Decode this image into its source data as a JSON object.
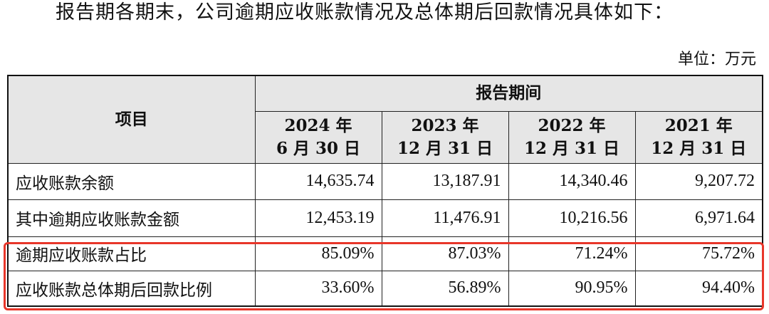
{
  "intro_text": "报告期各期末，公司逾期应收账款情况及总体期后回款情况具体如下：",
  "unit_text": "单位：万元",
  "table": {
    "item_header": "项目",
    "period_header": "报告期间",
    "periods": [
      {
        "year": "2024 年",
        "date": "6 月 30 日"
      },
      {
        "year": "2023 年",
        "date": "12 月 31 日"
      },
      {
        "year": "2022 年",
        "date": "12 月 31 日"
      },
      {
        "year": "2021 年",
        "date": "12 月 31 日"
      }
    ],
    "rows": [
      {
        "label": "应收账款余额",
        "values": [
          "14,635.74",
          "13,187.91",
          "14,340.46",
          "9,207.72"
        ]
      },
      {
        "label": "其中逾期应收账款金额",
        "values": [
          "12,453.19",
          "11,476.91",
          "10,216.56",
          "6,971.64"
        ]
      },
      {
        "label": "逾期应收账款占比",
        "values": [
          "85.09%",
          "87.03%",
          "71.24%",
          "75.72%"
        ]
      },
      {
        "label": "应收账款总体期后回款比例",
        "values": [
          "33.60%",
          "56.89%",
          "90.95%",
          "94.40%"
        ]
      }
    ]
  },
  "highlight_color": "#e8362a"
}
